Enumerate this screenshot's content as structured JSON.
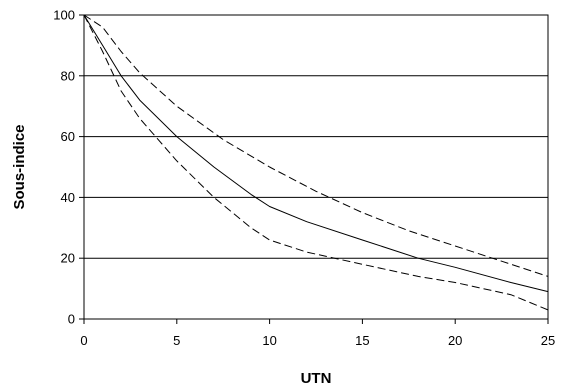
{
  "chart_data": {
    "type": "line",
    "title": "",
    "xlabel": "UTN",
    "ylabel": "Sous-indice",
    "xlim": [
      0,
      25
    ],
    "ylim": [
      0,
      100
    ],
    "x_ticks": [
      0,
      5,
      10,
      15,
      20,
      25
    ],
    "y_ticks": [
      0,
      20,
      40,
      60,
      80,
      100
    ],
    "x_tick_labels": [
      "0",
      "5",
      "10",
      "15",
      "20",
      "25"
    ],
    "y_tick_labels": [
      "0",
      "20",
      "40",
      "60",
      "80",
      "100"
    ],
    "grid": "horizontal",
    "legend": "none",
    "series": [
      {
        "style": "solid",
        "color": "#000000",
        "x": [
          0,
          1,
          2,
          3,
          5,
          7,
          9,
          10,
          12,
          15,
          18,
          20,
          23,
          25
        ],
        "y": [
          100,
          90,
          80,
          72,
          60,
          50,
          41,
          37,
          32,
          26,
          20,
          17,
          12,
          9
        ]
      },
      {
        "style": "dashed",
        "color": "#000000",
        "x": [
          0,
          1,
          2,
          3,
          5,
          7.5,
          10,
          12.5,
          15,
          17.5,
          20,
          22.5,
          25
        ],
        "y": [
          100,
          96,
          88,
          81,
          70,
          59,
          50,
          42,
          35,
          29,
          24,
          19,
          14
        ]
      },
      {
        "style": "dashed",
        "color": "#000000",
        "x": [
          0,
          1,
          2,
          3,
          5,
          7,
          9,
          10,
          12,
          15,
          18,
          20,
          23,
          25
        ],
        "y": [
          100,
          88,
          75,
          66,
          52,
          40,
          30,
          26,
          22,
          18,
          14,
          12,
          8,
          3
        ]
      }
    ]
  }
}
